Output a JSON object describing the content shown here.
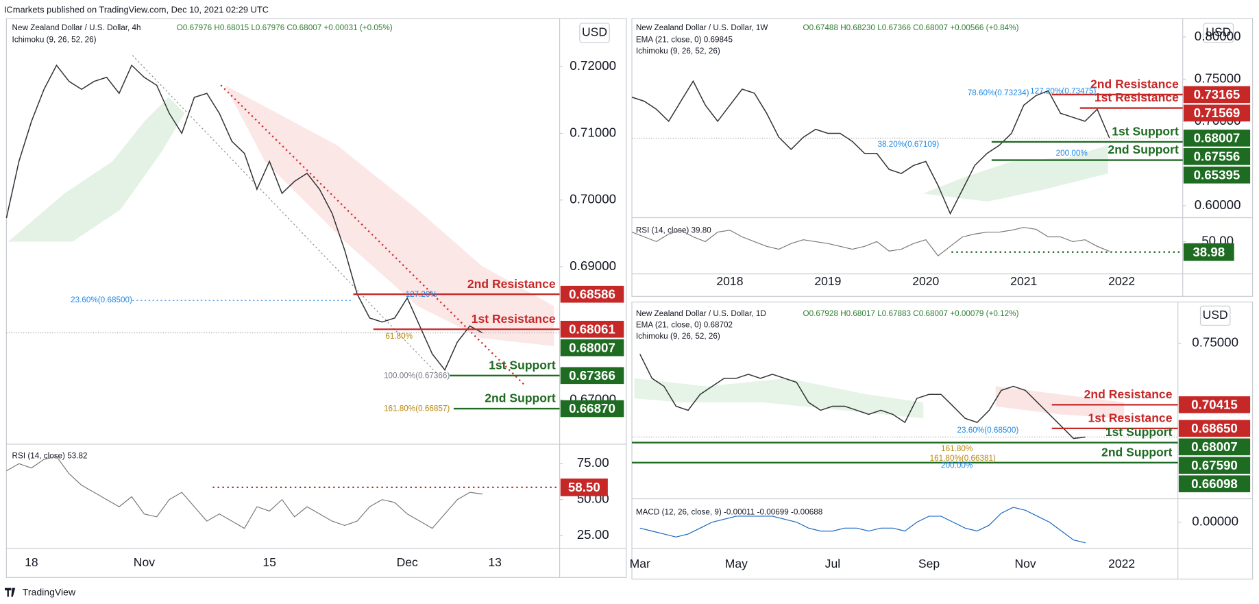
{
  "header": "ICmarkets published on TradingView.com, Dec 10, 2021 02:29 UTC",
  "footer": "TradingView",
  "chart_data": [
    {
      "type": "line",
      "title": "New Zealand Dollar / U.S. Dollar, 4h",
      "ohlc": "O0.67976 H0.68015 L0.67976 C0.68007 +0.00031 (+0.05%)",
      "indicators": [
        "Ichimoku (9, 26, 52, 26)"
      ],
      "currency": "USD",
      "categories": [
        null,
        null,
        "18",
        null,
        null,
        null,
        null,
        null,
        null,
        null,
        null,
        "Nov",
        null,
        null,
        null,
        null,
        null,
        null,
        null,
        null,
        null,
        "15",
        null,
        null,
        null,
        null,
        null,
        null,
        null,
        null,
        null,
        null,
        "Dec",
        null,
        null,
        null,
        null,
        null,
        null,
        "13",
        null,
        null,
        null,
        null,
        null
      ],
      "values": [
        0.6973,
        0.7058,
        0.7118,
        0.7166,
        0.7202,
        0.7178,
        0.7166,
        0.7178,
        0.7184,
        0.716,
        0.7202,
        0.7184,
        0.7172,
        0.713,
        0.71,
        0.7154,
        0.716,
        0.713,
        0.7088,
        0.707,
        0.7016,
        0.7058,
        0.701,
        0.7028,
        0.704,
        0.7016,
        0.698,
        0.6925,
        0.6859,
        0.6823,
        0.6817,
        0.6823,
        0.6853,
        0.6811,
        0.6769,
        0.6745,
        0.6787,
        0.6811,
        0.68007,
        null,
        null,
        null,
        null,
        null,
        null
      ],
      "color": "#333333",
      "ylim": [
        0.66337,
        0.72723
      ],
      "yticks": [
        {
          "value": 0.72,
          "label": "0.72000"
        },
        {
          "value": 0.71,
          "label": "0.71000"
        },
        {
          "value": 0.7,
          "label": "0.70000"
        },
        {
          "value": 0.69,
          "label": "0.69000"
        },
        {
          "value": 0.67,
          "label": "0.67000"
        }
      ],
      "last_price": {
        "value": 0.68007,
        "label": "0.68007",
        "color": "#1e6b22"
      },
      "levels": [
        {
          "name": "2nd Resistance",
          "value": 0.68586,
          "label": "0.68586",
          "color": "#c62828"
        },
        {
          "name": "1st Resistance",
          "value": 0.68061,
          "label": "0.68061",
          "color": "#c62828"
        },
        {
          "name": "1st Support",
          "value": 0.67366,
          "label": "0.67366",
          "color": "#1e6b22"
        },
        {
          "name": "2nd Support",
          "value": 0.6687,
          "label": "0.66870",
          "color": "#1e6b22"
        }
      ],
      "annotations": [
        "23.60%(0.68500)",
        "127.20%",
        "61.80%",
        "100.00%(0.67366)",
        "161.80%(0.66857)"
      ],
      "oscillator": {
        "type": "line",
        "title": "RSI (14, close)  53.82",
        "color": "#777777",
        "values": [
          70,
          75,
          72,
          78,
          80,
          68,
          60,
          55,
          50,
          45,
          52,
          40,
          38,
          50,
          55,
          45,
          35,
          40,
          35,
          30,
          45,
          42,
          50,
          38,
          45,
          40,
          35,
          32,
          35,
          45,
          50,
          48,
          40,
          35,
          30,
          40,
          50,
          55,
          53.82,
          null,
          null,
          null,
          null,
          null,
          null
        ],
        "ylim": [
          15.9,
          85.2
        ],
        "yticks": [
          {
            "value": 75,
            "label": "75.00"
          },
          {
            "value": 50,
            "label": "50.00"
          },
          {
            "value": 25,
            "label": "25.00"
          }
        ],
        "level": {
          "value": 58.5,
          "label": "58.50",
          "color": "#c62828"
        }
      }
    },
    {
      "type": "line",
      "title": "New Zealand Dollar / U.S. Dollar, 1W",
      "ohlc": "O0.67488 H0.68230 L0.67366 C0.68007 +0.00566 (+0.84%)",
      "indicators": [
        "EMA (21, close, 0)  0.69845",
        "Ichimoku (9, 26, 52, 26)"
      ],
      "currency": "USD",
      "categories": [
        null,
        null,
        null,
        null,
        null,
        null,
        null,
        null,
        "2018",
        null,
        null,
        null,
        null,
        null,
        null,
        null,
        "2019",
        null,
        null,
        null,
        null,
        null,
        null,
        null,
        "2020",
        null,
        null,
        null,
        null,
        null,
        null,
        null,
        "2021",
        null,
        null,
        null,
        null,
        null,
        null,
        null,
        "2022",
        null,
        null,
        null,
        null,
        null
      ],
      "values": [
        0.7286,
        0.7238,
        0.7143,
        0.7,
        0.7238,
        0.7476,
        0.719,
        0.7,
        0.719,
        0.7381,
        0.7333,
        0.7095,
        0.681,
        0.6667,
        0.681,
        0.6905,
        0.6857,
        0.6857,
        0.6762,
        0.6619,
        0.6619,
        0.6429,
        0.6381,
        0.6476,
        0.6524,
        0.6238,
        0.5905,
        0.619,
        0.6476,
        0.6619,
        0.6714,
        0.6857,
        0.719,
        0.7305,
        0.7362,
        0.7095,
        0.7048,
        0.7,
        0.7143,
        0.68007,
        null,
        null,
        null,
        null,
        null,
        null
      ],
      "color": "#333333",
      "ylim": [
        0.5857,
        0.8219
      ],
      "yticks": [
        {
          "value": 0.8,
          "label": "0.80000"
        },
        {
          "value": 0.75,
          "label": "0.75000"
        },
        {
          "value": 0.7,
          "label": "0.70000"
        },
        {
          "value": 0.6,
          "label": "0.60000"
        }
      ],
      "last_price": {
        "value": 0.68007,
        "label": "0.68007",
        "color": "#1e6b22"
      },
      "levels": [
        {
          "name": "2nd Resistance",
          "value": 0.73165,
          "label": "0.73165",
          "color": "#c62828"
        },
        {
          "name": "1st Resistance",
          "value": 0.71569,
          "label": "0.71569",
          "color": "#c62828"
        },
        {
          "name": "1st Support",
          "value": 0.67556,
          "label": "0.67556",
          "color": "#1e6b22"
        },
        {
          "name": "2nd Support",
          "value": 0.65395,
          "label": "0.65395",
          "color": "#1e6b22"
        }
      ],
      "annotations": [
        "78.60%(0.73234)",
        "127.20%(0.73475)",
        "38.20%(0.67109)",
        "200.00%"
      ],
      "oscillator": {
        "type": "line",
        "title": "RSI (14, close)  39.80",
        "color": "#777777",
        "values": [
          60,
          55,
          50,
          58,
          62,
          55,
          50,
          60,
          62,
          55,
          50,
          45,
          42,
          48,
          52,
          50,
          48,
          45,
          42,
          45,
          50,
          40,
          42,
          48,
          52,
          35,
          45,
          55,
          58,
          60,
          60,
          62,
          65,
          63,
          55,
          55,
          50,
          52,
          45,
          39.8,
          null,
          null,
          null,
          null,
          null,
          null
        ],
        "ylim": [
          16,
          71
        ],
        "yticks": [
          {
            "value": 50,
            "label": "50.00"
          }
        ],
        "level": {
          "value": 38.98,
          "label": "38.98",
          "color": "#1e6b22"
        }
      }
    },
    {
      "type": "line",
      "title": "New Zealand Dollar / U.S. Dollar, 1D",
      "ohlc": "O0.67928 H0.68017 L0.67883 C0.68007 +0.00079 (+0.12%)",
      "indicators": [
        "EMA (21, close, 0)  0.68702",
        "Ichimoku (9, 26, 52, 26)"
      ],
      "currency": "USD",
      "categories": [
        "Mar",
        null,
        null,
        null,
        null,
        null,
        null,
        null,
        "May",
        null,
        null,
        null,
        null,
        null,
        null,
        null,
        "Jul",
        null,
        null,
        null,
        null,
        null,
        null,
        null,
        "Sep",
        null,
        null,
        null,
        null,
        null,
        null,
        null,
        "Nov",
        null,
        null,
        null,
        null,
        null,
        null,
        null,
        "2022",
        null,
        null,
        null,
        null
      ],
      "values": [
        0.7419,
        0.7239,
        0.7179,
        0.703,
        0.7,
        0.7119,
        0.7179,
        0.7239,
        0.7239,
        0.7269,
        0.7239,
        0.7269,
        0.7239,
        0.7209,
        0.7059,
        0.7,
        0.703,
        0.703,
        0.7,
        0.697,
        0.7,
        0.697,
        0.691,
        0.7089,
        0.7119,
        0.7119,
        0.703,
        0.694,
        0.691,
        0.7,
        0.7149,
        0.7179,
        0.7149,
        0.7059,
        0.697,
        0.688,
        0.679,
        0.68007,
        null,
        null,
        null,
        null,
        null,
        null,
        null
      ],
      "color": "#333333",
      "ylim": [
        0.634,
        0.779
      ],
      "yticks": [
        {
          "value": 0.75,
          "label": "0.75000"
        }
      ],
      "last_price": {
        "value": 0.68007,
        "label": "0.68007",
        "color": "#1e6b22"
      },
      "levels": [
        {
          "name": "2nd Resistance",
          "value": 0.70415,
          "label": "0.70415",
          "color": "#c62828"
        },
        {
          "name": "1st Resistance",
          "value": 0.6865,
          "label": "0.68650",
          "color": "#c62828"
        },
        {
          "name": "1st Support",
          "value": 0.6759,
          "label": "0.67590",
          "color": "#1e6b22"
        },
        {
          "name": "2nd Support",
          "value": 0.66098,
          "label": "0.66098",
          "color": "#1e6b22"
        }
      ],
      "annotations": [
        "23.60%(0.68500)",
        "161.80%",
        "161.80%(0.66381)",
        "200.00%"
      ],
      "oscillator": {
        "type": "line",
        "title": "MACD (12, 26, close, 9)  -0.00011  -0.00699  -0.00688",
        "color": "#1565c0",
        "values": [
          -0.002,
          -0.003,
          -0.004,
          -0.005,
          -0.004,
          -0.002,
          0,
          0.001,
          0.002,
          0.002,
          0.002,
          0.002,
          0.001,
          0,
          -0.002,
          -0.003,
          -0.003,
          -0.002,
          -0.002,
          -0.003,
          -0.002,
          -0.002,
          -0.003,
          0,
          0.002,
          0.002,
          0,
          -0.002,
          -0.003,
          -0.001,
          0.003,
          0.005,
          0.004,
          0.002,
          0,
          -0.003,
          -0.006,
          -0.00699,
          null,
          null,
          null,
          null,
          null,
          null,
          null
        ],
        "ylim": [
          -0.0089,
          0.0065
        ],
        "yticks": [
          {
            "value": 0,
            "label": "0.00000"
          }
        ]
      }
    }
  ]
}
